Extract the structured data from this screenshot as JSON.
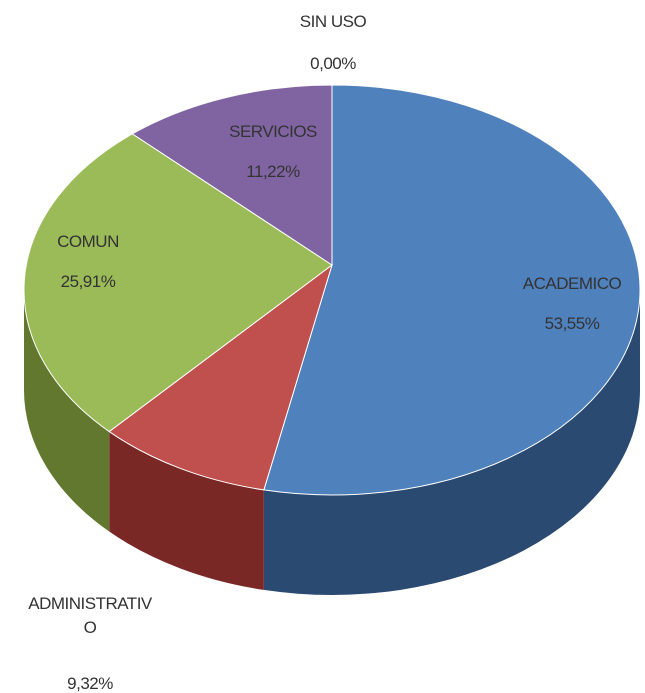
{
  "chart_data": {
    "type": "pie",
    "categories": [
      "ACADEMICO",
      "ADMINISTRATIVO",
      "COMUN",
      "SERVICIOS",
      "SIN USO"
    ],
    "values": [
      53.55,
      9.32,
      25.91,
      11.22,
      0.0
    ],
    "value_labels": [
      "53,55%",
      "9,32%",
      "25,91%",
      "11,22%",
      "0,00%"
    ],
    "colors": [
      "#4f81bd",
      "#c0504d",
      "#9bbb59",
      "#8064a2",
      "#f79646"
    ],
    "side_colors": [
      "#2a4a72",
      "#7a2826",
      "#62782f",
      "#4e3a6a",
      "#a85f20"
    ]
  }
}
